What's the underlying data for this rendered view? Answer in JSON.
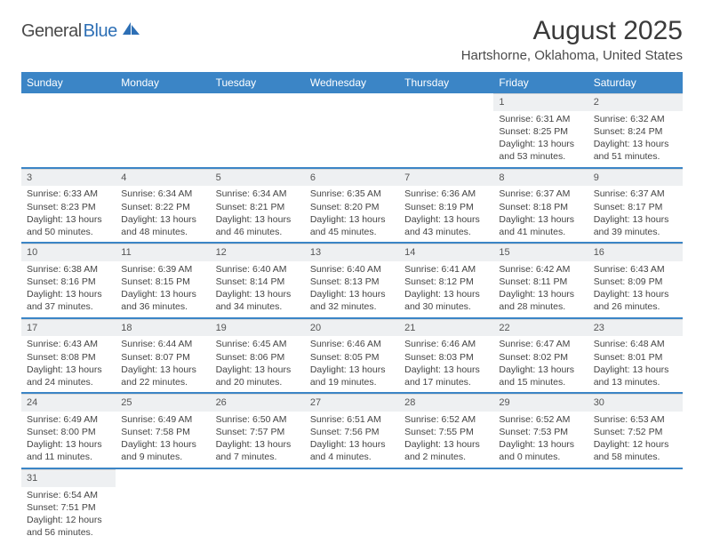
{
  "logo": {
    "main": "General",
    "accent": "Blue"
  },
  "title": "August 2025",
  "location": "Hartshorne, Oklahoma, United States",
  "colors": {
    "header_bg": "#3b85c6",
    "header_text": "#ffffff",
    "daynum_bg": "#eef0f2",
    "row_divider": "#3b85c6",
    "body_text": "#444444",
    "title_text": "#3a3a3a",
    "logo_gray": "#4a4a4a",
    "logo_blue": "#2d6fb5",
    "page_bg": "#ffffff"
  },
  "typography": {
    "title_fontsize": 30,
    "location_fontsize": 15,
    "dayheader_fontsize": 12,
    "cell_fontsize": 10.5
  },
  "day_headers": [
    "Sunday",
    "Monday",
    "Tuesday",
    "Wednesday",
    "Thursday",
    "Friday",
    "Saturday"
  ],
  "weeks": [
    [
      null,
      null,
      null,
      null,
      null,
      {
        "n": "1",
        "sr": "Sunrise: 6:31 AM",
        "ss": "Sunset: 8:25 PM",
        "dl": "Daylight: 13 hours and 53 minutes."
      },
      {
        "n": "2",
        "sr": "Sunrise: 6:32 AM",
        "ss": "Sunset: 8:24 PM",
        "dl": "Daylight: 13 hours and 51 minutes."
      }
    ],
    [
      {
        "n": "3",
        "sr": "Sunrise: 6:33 AM",
        "ss": "Sunset: 8:23 PM",
        "dl": "Daylight: 13 hours and 50 minutes."
      },
      {
        "n": "4",
        "sr": "Sunrise: 6:34 AM",
        "ss": "Sunset: 8:22 PM",
        "dl": "Daylight: 13 hours and 48 minutes."
      },
      {
        "n": "5",
        "sr": "Sunrise: 6:34 AM",
        "ss": "Sunset: 8:21 PM",
        "dl": "Daylight: 13 hours and 46 minutes."
      },
      {
        "n": "6",
        "sr": "Sunrise: 6:35 AM",
        "ss": "Sunset: 8:20 PM",
        "dl": "Daylight: 13 hours and 45 minutes."
      },
      {
        "n": "7",
        "sr": "Sunrise: 6:36 AM",
        "ss": "Sunset: 8:19 PM",
        "dl": "Daylight: 13 hours and 43 minutes."
      },
      {
        "n": "8",
        "sr": "Sunrise: 6:37 AM",
        "ss": "Sunset: 8:18 PM",
        "dl": "Daylight: 13 hours and 41 minutes."
      },
      {
        "n": "9",
        "sr": "Sunrise: 6:37 AM",
        "ss": "Sunset: 8:17 PM",
        "dl": "Daylight: 13 hours and 39 minutes."
      }
    ],
    [
      {
        "n": "10",
        "sr": "Sunrise: 6:38 AM",
        "ss": "Sunset: 8:16 PM",
        "dl": "Daylight: 13 hours and 37 minutes."
      },
      {
        "n": "11",
        "sr": "Sunrise: 6:39 AM",
        "ss": "Sunset: 8:15 PM",
        "dl": "Daylight: 13 hours and 36 minutes."
      },
      {
        "n": "12",
        "sr": "Sunrise: 6:40 AM",
        "ss": "Sunset: 8:14 PM",
        "dl": "Daylight: 13 hours and 34 minutes."
      },
      {
        "n": "13",
        "sr": "Sunrise: 6:40 AM",
        "ss": "Sunset: 8:13 PM",
        "dl": "Daylight: 13 hours and 32 minutes."
      },
      {
        "n": "14",
        "sr": "Sunrise: 6:41 AM",
        "ss": "Sunset: 8:12 PM",
        "dl": "Daylight: 13 hours and 30 minutes."
      },
      {
        "n": "15",
        "sr": "Sunrise: 6:42 AM",
        "ss": "Sunset: 8:11 PM",
        "dl": "Daylight: 13 hours and 28 minutes."
      },
      {
        "n": "16",
        "sr": "Sunrise: 6:43 AM",
        "ss": "Sunset: 8:09 PM",
        "dl": "Daylight: 13 hours and 26 minutes."
      }
    ],
    [
      {
        "n": "17",
        "sr": "Sunrise: 6:43 AM",
        "ss": "Sunset: 8:08 PM",
        "dl": "Daylight: 13 hours and 24 minutes."
      },
      {
        "n": "18",
        "sr": "Sunrise: 6:44 AM",
        "ss": "Sunset: 8:07 PM",
        "dl": "Daylight: 13 hours and 22 minutes."
      },
      {
        "n": "19",
        "sr": "Sunrise: 6:45 AM",
        "ss": "Sunset: 8:06 PM",
        "dl": "Daylight: 13 hours and 20 minutes."
      },
      {
        "n": "20",
        "sr": "Sunrise: 6:46 AM",
        "ss": "Sunset: 8:05 PM",
        "dl": "Daylight: 13 hours and 19 minutes."
      },
      {
        "n": "21",
        "sr": "Sunrise: 6:46 AM",
        "ss": "Sunset: 8:03 PM",
        "dl": "Daylight: 13 hours and 17 minutes."
      },
      {
        "n": "22",
        "sr": "Sunrise: 6:47 AM",
        "ss": "Sunset: 8:02 PM",
        "dl": "Daylight: 13 hours and 15 minutes."
      },
      {
        "n": "23",
        "sr": "Sunrise: 6:48 AM",
        "ss": "Sunset: 8:01 PM",
        "dl": "Daylight: 13 hours and 13 minutes."
      }
    ],
    [
      {
        "n": "24",
        "sr": "Sunrise: 6:49 AM",
        "ss": "Sunset: 8:00 PM",
        "dl": "Daylight: 13 hours and 11 minutes."
      },
      {
        "n": "25",
        "sr": "Sunrise: 6:49 AM",
        "ss": "Sunset: 7:58 PM",
        "dl": "Daylight: 13 hours and 9 minutes."
      },
      {
        "n": "26",
        "sr": "Sunrise: 6:50 AM",
        "ss": "Sunset: 7:57 PM",
        "dl": "Daylight: 13 hours and 7 minutes."
      },
      {
        "n": "27",
        "sr": "Sunrise: 6:51 AM",
        "ss": "Sunset: 7:56 PM",
        "dl": "Daylight: 13 hours and 4 minutes."
      },
      {
        "n": "28",
        "sr": "Sunrise: 6:52 AM",
        "ss": "Sunset: 7:55 PM",
        "dl": "Daylight: 13 hours and 2 minutes."
      },
      {
        "n": "29",
        "sr": "Sunrise: 6:52 AM",
        "ss": "Sunset: 7:53 PM",
        "dl": "Daylight: 13 hours and 0 minutes."
      },
      {
        "n": "30",
        "sr": "Sunrise: 6:53 AM",
        "ss": "Sunset: 7:52 PM",
        "dl": "Daylight: 12 hours and 58 minutes."
      }
    ],
    [
      {
        "n": "31",
        "sr": "Sunrise: 6:54 AM",
        "ss": "Sunset: 7:51 PM",
        "dl": "Daylight: 12 hours and 56 minutes."
      },
      null,
      null,
      null,
      null,
      null,
      null
    ]
  ]
}
